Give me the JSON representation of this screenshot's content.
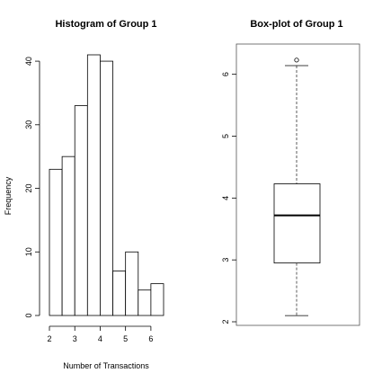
{
  "chart_data": [
    {
      "type": "bar",
      "title": "Histogram of Group 1",
      "xlabel": "Number of Transactions",
      "ylabel": "Frequency",
      "bins": [
        {
          "x0": 2.0,
          "x1": 2.5,
          "value": 23
        },
        {
          "x0": 2.5,
          "x1": 3.0,
          "value": 25
        },
        {
          "x0": 3.0,
          "x1": 3.5,
          "value": 33
        },
        {
          "x0": 3.5,
          "x1": 4.0,
          "value": 41
        },
        {
          "x0": 4.0,
          "x1": 4.5,
          "value": 40
        },
        {
          "x0": 4.5,
          "x1": 5.0,
          "value": 7
        },
        {
          "x0": 5.0,
          "x1": 5.5,
          "value": 10
        },
        {
          "x0": 5.5,
          "x1": 6.0,
          "value": 4
        },
        {
          "x0": 6.0,
          "x1": 6.5,
          "value": 5
        }
      ],
      "xlim": [
        2,
        6.5
      ],
      "ylim": [
        0,
        41
      ],
      "xticks": [
        2,
        3,
        4,
        5,
        6
      ],
      "xtick_labels": [
        "2",
        "3",
        "4",
        "5",
        "6"
      ],
      "yticks": [
        0,
        10,
        20,
        30,
        40
      ],
      "ytick_labels": [
        "0",
        "10",
        "20",
        "30",
        "40"
      ],
      "grid": false
    },
    {
      "type": "box",
      "title": "Box-plot of Group 1",
      "xlabel": "",
      "ylabel": "",
      "stats": {
        "whisker_low": 2.1,
        "q1": 2.95,
        "median": 3.72,
        "q3": 4.23,
        "whisker_high": 6.14,
        "outliers": [
          6.23
        ]
      },
      "ylim": [
        2,
        6.3
      ],
      "yticks": [
        2,
        3,
        4,
        5,
        6
      ],
      "ytick_labels": [
        "2",
        "3",
        "4",
        "5",
        "6"
      ],
      "grid": false
    }
  ]
}
